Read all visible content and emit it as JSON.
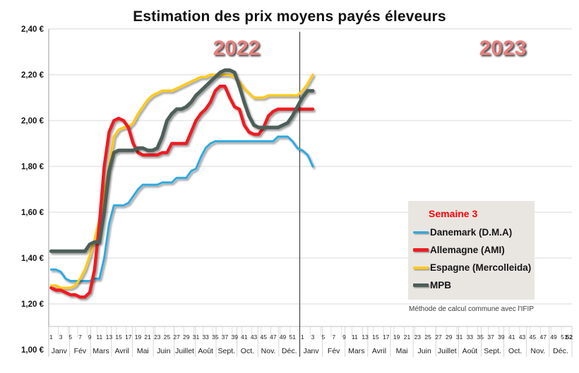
{
  "chart_data": {
    "type": "line",
    "title": "Estimation des prix moyens payés éleveurs",
    "years": [
      "2022",
      "2023"
    ],
    "legend_header": "Semaine 3",
    "note": "Méthode de calcul commune avec l'IFIP",
    "xlabel": "",
    "ylabel": "",
    "ylim": [
      1.0,
      2.4
    ],
    "ytick_values": [
      2.4,
      2.2,
      2.0,
      1.8,
      1.6,
      1.4,
      1.2,
      1.0
    ],
    "ytick_labels": [
      "2,40 €",
      "2,20 €",
      "2,00 €",
      "1,80 €",
      "1,60 €",
      "1,40 €",
      "1,20 €",
      "1,00 €"
    ],
    "week_tick_labels": [
      "1",
      "3",
      "5",
      "7",
      "9",
      "11",
      "13",
      "15",
      "17",
      "19",
      "21",
      "23",
      "25",
      "27",
      "29",
      "31",
      "33",
      "35",
      "37",
      "39",
      "41",
      "43",
      "45",
      "47",
      "49",
      "51"
    ],
    "final_week_label": "52",
    "month_labels": [
      "Janv",
      "Fév",
      "Mars",
      "Avril",
      "Mai",
      "Juin",
      "Juillet",
      "Août",
      "Sept.",
      "Oct.",
      "Nov.",
      "Déc."
    ],
    "weeks_per_year": 52,
    "grid": true,
    "year_divider_line": true,
    "legend_position": "middle-right",
    "colors": {
      "grid": "#DADADA",
      "axis": "#9a9a9a",
      "divider": "#404040",
      "year_label": "#E7807D",
      "legend_bg": "#E9E6E2",
      "legend_header": "#FF0000"
    },
    "series": [
      {
        "name": "Danemark (D.M.A)",
        "color": "#2FA9E1",
        "stroke_width": 3,
        "values": [
          1.35,
          1.35,
          1.34,
          1.31,
          1.3,
          1.3,
          1.3,
          1.3,
          1.3,
          1.31,
          1.31,
          1.4,
          1.55,
          1.63,
          1.63,
          1.63,
          1.64,
          1.67,
          1.7,
          1.72,
          1.72,
          1.72,
          1.72,
          1.73,
          1.73,
          1.73,
          1.75,
          1.75,
          1.75,
          1.78,
          1.79,
          1.84,
          1.88,
          1.9,
          1.91,
          1.91,
          1.91,
          1.91,
          1.91,
          1.91,
          1.91,
          1.91,
          1.91,
          1.91,
          1.91,
          1.91,
          1.91,
          1.93,
          1.93,
          1.93,
          1.91,
          1.88,
          1.87,
          1.85,
          1.8
        ]
      },
      {
        "name": "Espagne (Mercolleida)",
        "color": "#FFC91E",
        "stroke_width": 3.5,
        "values": [
          1.28,
          1.28,
          1.27,
          1.27,
          1.27,
          1.28,
          1.31,
          1.35,
          1.41,
          1.48,
          1.57,
          1.68,
          1.8,
          1.93,
          1.96,
          1.97,
          1.97,
          1.99,
          2.03,
          2.06,
          2.09,
          2.11,
          2.12,
          2.13,
          2.13,
          2.13,
          2.14,
          2.15,
          2.16,
          2.17,
          2.18,
          2.19,
          2.19,
          2.2,
          2.2,
          2.2,
          2.2,
          2.2,
          2.19,
          2.17,
          2.14,
          2.12,
          2.1,
          2.1,
          2.1,
          2.11,
          2.11,
          2.11,
          2.11,
          2.11,
          2.11,
          2.11,
          2.13,
          2.16,
          2.2
        ]
      },
      {
        "name": "Allemagne (AMI)",
        "color": "#EE1D23",
        "stroke_width": 4.5,
        "values": [
          1.27,
          1.26,
          1.26,
          1.25,
          1.24,
          1.24,
          1.23,
          1.23,
          1.25,
          1.35,
          1.55,
          1.8,
          1.95,
          2.0,
          2.01,
          2.0,
          1.97,
          1.9,
          1.86,
          1.85,
          1.85,
          1.85,
          1.85,
          1.86,
          1.86,
          1.9,
          1.9,
          1.9,
          1.9,
          1.95,
          2.0,
          2.03,
          2.05,
          2.08,
          2.13,
          2.15,
          2.15,
          2.1,
          2.06,
          2.05,
          1.98,
          1.95,
          1.94,
          1.94,
          1.97,
          2.02,
          2.04,
          2.05,
          2.05,
          2.05,
          2.05,
          2.05,
          2.05,
          2.05,
          2.05
        ]
      },
      {
        "name": "MPB",
        "color": "#4D5E58",
        "stroke_width": 5,
        "values": [
          1.43,
          1.43,
          1.43,
          1.43,
          1.43,
          1.43,
          1.43,
          1.43,
          1.46,
          1.47,
          1.47,
          1.6,
          1.78,
          1.86,
          1.87,
          1.87,
          1.87,
          1.87,
          1.88,
          1.88,
          1.87,
          1.87,
          1.88,
          1.93,
          2.0,
          2.03,
          2.05,
          2.05,
          2.06,
          2.08,
          2.11,
          2.13,
          2.15,
          2.17,
          2.19,
          2.21,
          2.22,
          2.22,
          2.21,
          2.15,
          2.08,
          2.02,
          1.98,
          1.97,
          1.97,
          1.97,
          1.97,
          1.97,
          1.98,
          1.99,
          2.02,
          2.06,
          2.1,
          2.13,
          2.13
        ]
      }
    ],
    "legend_order": [
      0,
      2,
      1,
      3
    ]
  }
}
